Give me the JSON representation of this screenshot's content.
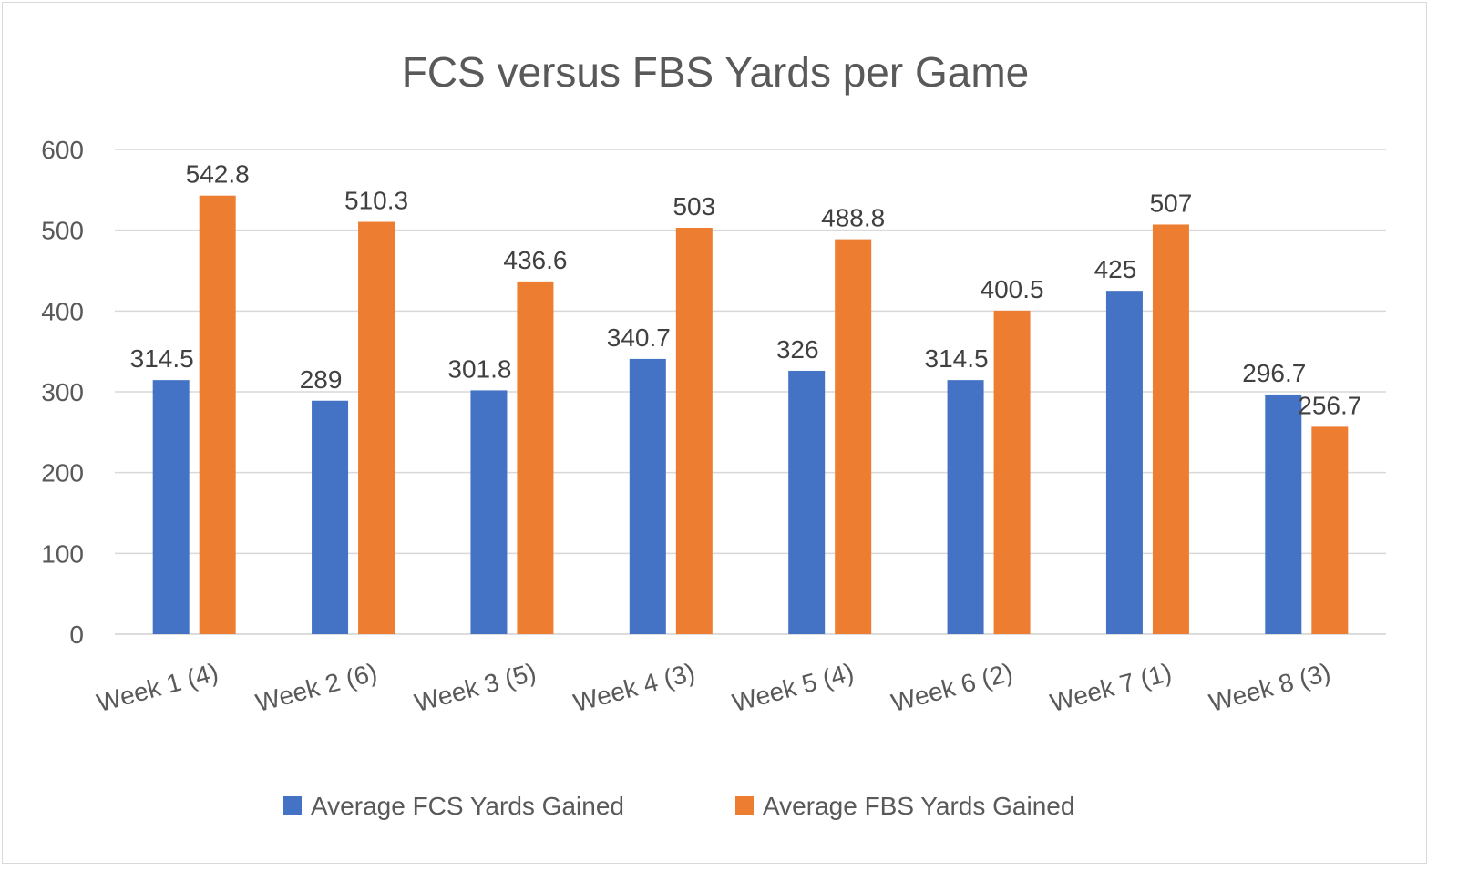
{
  "chart_data": {
    "type": "bar",
    "title": "FCS versus FBS Yards per Game",
    "xlabel": "",
    "ylabel": "",
    "categories": [
      "Week 1 (4)",
      "Week 2 (6)",
      "Week 3 (5)",
      "Week 4 (3)",
      "Week 5 (4)",
      "Week 6 (2)",
      "Week 7 (1)",
      "Week 8 (3)"
    ],
    "series": [
      {
        "name": "Average FCS Yards Gained",
        "color": "#4472C4",
        "values": [
          314.5,
          289,
          301.8,
          340.7,
          326,
          314.5,
          425,
          296.7
        ]
      },
      {
        "name": "Average FBS Yards Gained",
        "color": "#ED7D31",
        "values": [
          542.8,
          510.3,
          436.6,
          503,
          488.8,
          400.5,
          507,
          256.7
        ]
      }
    ],
    "ylim": [
      0,
      600
    ],
    "yticks": [
      0,
      100,
      200,
      300,
      400,
      500,
      600
    ],
    "grid": true,
    "legend": "bottom",
    "data_labels": true
  }
}
